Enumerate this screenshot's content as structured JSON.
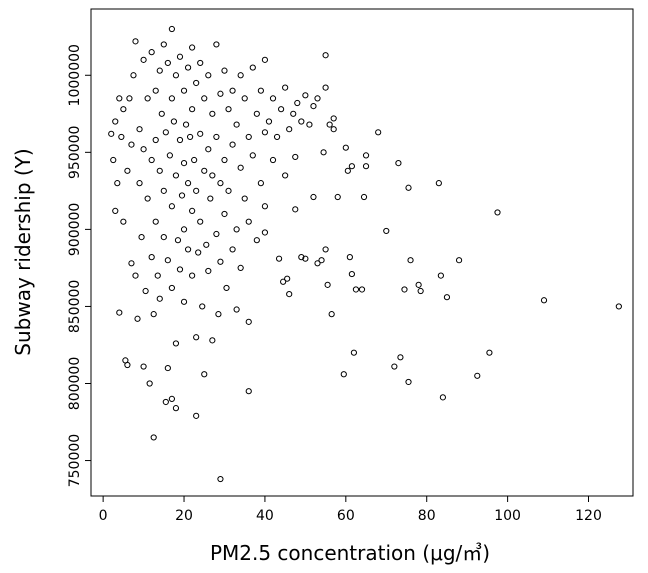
{
  "chart_data": {
    "type": "scatter",
    "x_label": "PM2.5 concentration (μg/㎥)",
    "y_label": "Subway ridership (Y)",
    "xlim": [
      -3,
      131
    ],
    "ylim": [
      727000,
      1043000
    ],
    "xticks": [
      0,
      20,
      40,
      60,
      80,
      100,
      120
    ],
    "yticks": [
      750000,
      800000,
      850000,
      900000,
      950000,
      1000000
    ],
    "color": "#000000",
    "x": [
      127.5,
      109,
      97.5,
      95.5,
      92.5,
      88,
      85,
      84,
      83.5,
      83,
      78,
      78.5,
      76,
      75.5,
      75.5,
      74.5,
      73.5,
      73,
      72,
      70,
      68,
      65,
      65,
      64.5,
      64,
      62.5,
      62,
      61.5,
      61,
      61.5,
      60.5,
      60,
      59.5,
      58,
      57,
      56.5,
      55.5,
      55,
      55,
      54.5,
      54,
      53,
      52,
      51,
      50,
      49,
      47.5,
      47.5,
      46,
      45.5,
      44.5,
      43.5,
      40,
      36,
      36,
      29,
      12.5,
      23,
      18,
      15.5,
      17,
      2,
      2.5,
      3,
      3,
      3.5,
      4,
      4,
      4.5,
      5,
      5,
      5.5,
      6,
      6,
      6.5,
      7,
      7,
      7.5,
      8,
      8,
      8.5,
      9,
      9,
      9.5,
      10,
      10,
      10,
      10.5,
      11,
      11,
      11.5,
      12,
      12,
      12,
      12.5,
      13,
      13,
      13,
      13.5,
      14,
      14,
      14,
      14.5,
      15,
      15,
      15,
      15.5,
      16,
      16,
      16,
      16.5,
      17,
      17,
      17,
      17,
      17.5,
      18,
      18,
      18,
      18.5,
      19,
      19,
      19,
      19.5,
      20,
      20,
      20,
      20,
      20.5,
      21,
      21,
      21,
      21.5,
      22,
      22,
      22,
      22,
      22.5,
      23,
      23,
      23,
      23.5,
      24,
      24,
      24,
      24.5,
      25,
      25,
      25,
      25.5,
      26,
      26,
      26,
      26.5,
      27,
      27,
      27,
      28,
      28,
      28,
      28.5,
      29,
      29,
      29,
      30,
      30,
      30,
      30.5,
      31,
      31,
      32,
      32,
      32,
      33,
      33,
      33,
      34,
      34,
      34,
      35,
      35,
      36,
      36,
      37,
      37,
      38,
      38,
      39,
      39,
      40,
      40,
      40,
      41,
      42,
      42,
      43,
      44,
      45,
      45,
      46,
      47,
      48,
      49,
      50,
      52,
      53,
      55,
      56,
      57
    ],
    "values": [
      850000,
      854000,
      911000,
      820000,
      805000,
      880000,
      856000,
      791000,
      870000,
      930000,
      864000,
      860000,
      880000,
      927000,
      801000,
      861000,
      817000,
      943000,
      811000,
      899000,
      963000,
      948000,
      941000,
      921000,
      861000,
      861000,
      820000,
      871000,
      882000,
      941000,
      938000,
      953000,
      806000,
      921000,
      972000,
      845000,
      864000,
      887000,
      1013000,
      950000,
      880000,
      878000,
      921000,
      968000,
      881000,
      882000,
      913000,
      947000,
      858000,
      868000,
      866000,
      881000,
      898000,
      840000,
      795000,
      738000,
      765000,
      779000,
      784000,
      788000,
      790000,
      962000,
      945000,
      970000,
      912000,
      930000,
      985000,
      846000,
      960000,
      978000,
      905000,
      815000,
      812000,
      938000,
      985000,
      955000,
      878000,
      1000000,
      1022000,
      870000,
      842000,
      965000,
      930000,
      895000,
      1010000,
      952000,
      811000,
      860000,
      985000,
      920000,
      800000,
      1015000,
      945000,
      882000,
      845000,
      990000,
      958000,
      905000,
      870000,
      1003000,
      938000,
      855000,
      975000,
      1020000,
      925000,
      895000,
      963000,
      1008000,
      880000,
      810000,
      948000,
      1030000,
      985000,
      915000,
      862000,
      970000,
      1000000,
      935000,
      826000,
      893000,
      1012000,
      958000,
      874000,
      922000,
      990000,
      943000,
      900000,
      853000,
      968000,
      1005000,
      930000,
      887000,
      960000,
      1018000,
      978000,
      912000,
      870000,
      945000,
      995000,
      925000,
      830000,
      885000,
      1008000,
      962000,
      905000,
      850000,
      985000,
      938000,
      806000,
      890000,
      1000000,
      952000,
      873000,
      920000,
      975000,
      935000,
      828000,
      1020000,
      960000,
      897000,
      845000,
      988000,
      930000,
      879000,
      1003000,
      945000,
      910000,
      862000,
      978000,
      925000,
      990000,
      955000,
      887000,
      968000,
      900000,
      848000,
      1000000,
      940000,
      875000,
      985000,
      920000,
      960000,
      905000,
      1005000,
      948000,
      975000,
      893000,
      990000,
      930000,
      1010000,
      963000,
      915000,
      970000,
      985000,
      945000,
      960000,
      978000,
      992000,
      935000,
      965000,
      975000,
      982000,
      970000,
      987000,
      980000,
      985000,
      992000,
      968000,
      965000
    ]
  }
}
